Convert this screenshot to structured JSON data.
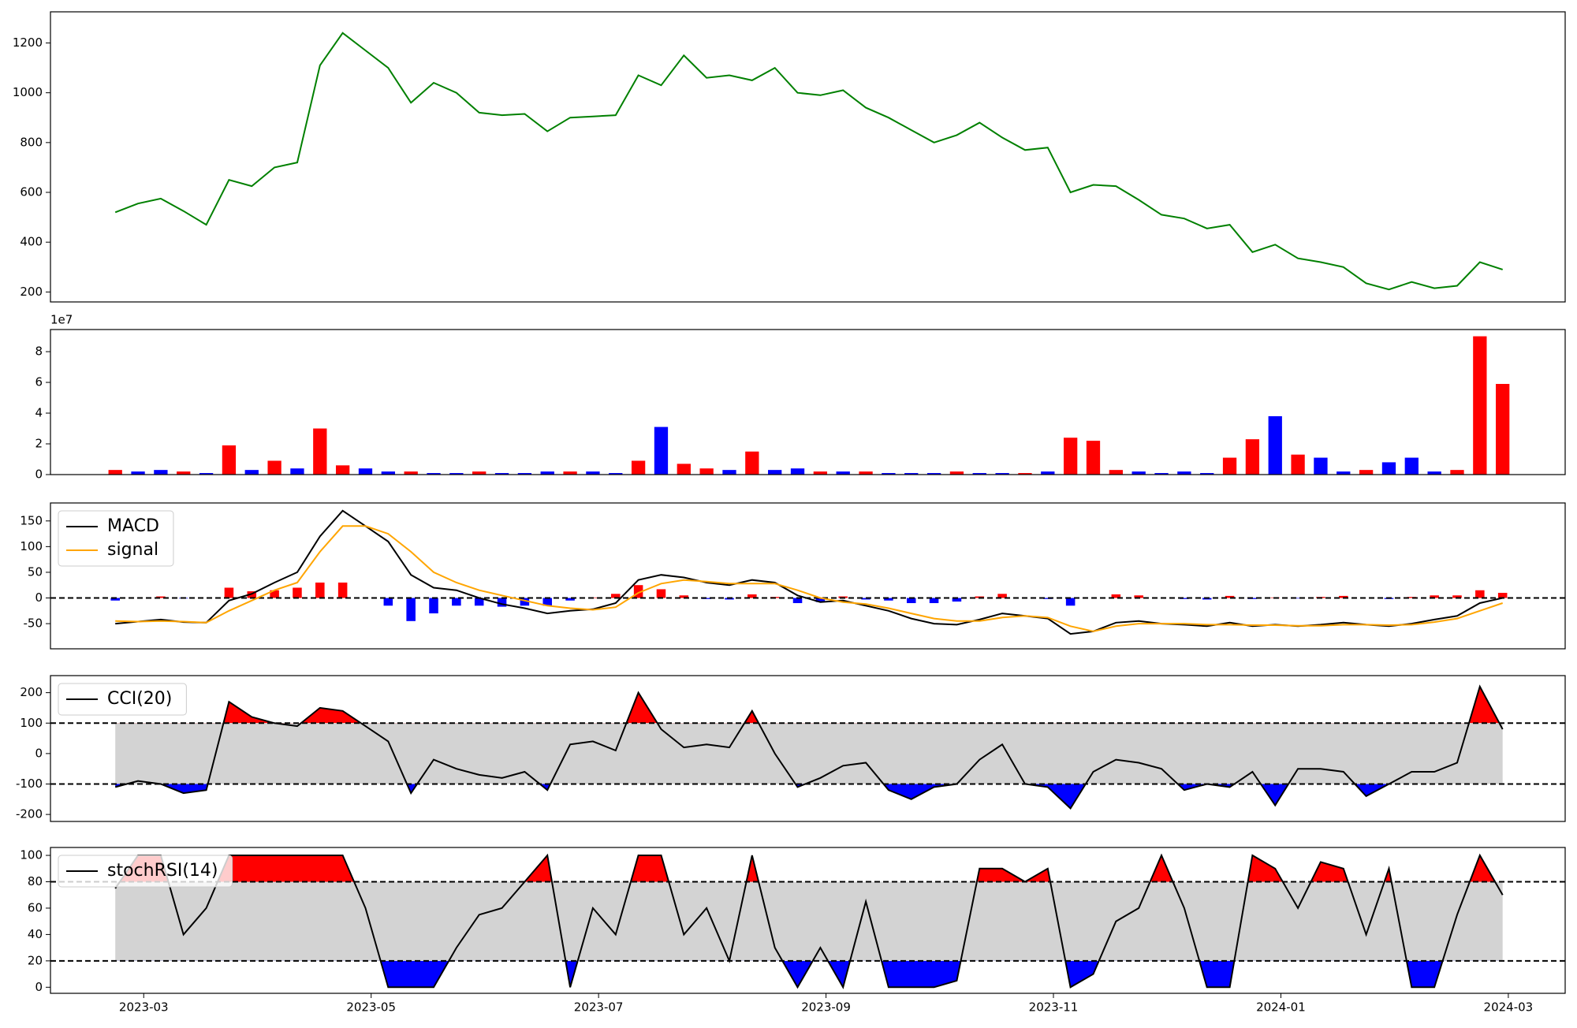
{
  "chart_data": [
    {
      "type": "line",
      "color": "green",
      "x": [
        -0.25,
        -0.05,
        0.15,
        0.35,
        0.55,
        0.75,
        0.95,
        1.15,
        1.35,
        1.55,
        1.75,
        1.95,
        2.15,
        2.35,
        2.55,
        2.75,
        2.95,
        3.15,
        3.35,
        3.55,
        3.75,
        3.95,
        4.15,
        4.35,
        4.55,
        4.75,
        4.95,
        5.15,
        5.35,
        5.55,
        5.75,
        5.95,
        6.15,
        6.35,
        6.55,
        6.75,
        6.95,
        7.15,
        7.35,
        7.55,
        7.75,
        7.95,
        8.15,
        8.35,
        8.55,
        8.75,
        8.95,
        9.15,
        9.35,
        9.55,
        9.75,
        9.95,
        10.15,
        10.35,
        10.55,
        10.75,
        10.95,
        11.15,
        11.35,
        11.55,
        11.75,
        11.95
      ],
      "values": [
        520,
        555,
        575,
        525,
        470,
        650,
        625,
        700,
        720,
        1110,
        1240,
        1170,
        1100,
        960,
        1040,
        1000,
        920,
        910,
        915,
        845,
        900,
        905,
        910,
        1070,
        1030,
        1150,
        1060,
        1070,
        1050,
        1100,
        1000,
        990,
        1010,
        940,
        900,
        850,
        800,
        830,
        880,
        820,
        770,
        780,
        600,
        630,
        625,
        570,
        510,
        495,
        455,
        470,
        360,
        390,
        335,
        320,
        300,
        235,
        210,
        240,
        215,
        225,
        320,
        290
      ],
      "xlim": [
        -0.82,
        12.5
      ],
      "ylim": [
        160,
        1325
      ],
      "yticks": [
        200,
        400,
        600,
        800,
        1000,
        1200
      ]
    },
    {
      "type": "bar",
      "offset_label": "1e7",
      "x": [
        -0.25,
        -0.05,
        0.15,
        0.35,
        0.55,
        0.75,
        0.95,
        1.15,
        1.35,
        1.55,
        1.75,
        1.95,
        2.15,
        2.35,
        2.55,
        2.75,
        2.95,
        3.15,
        3.35,
        3.55,
        3.75,
        3.95,
        4.15,
        4.35,
        4.55,
        4.75,
        4.95,
        5.15,
        5.35,
        5.55,
        5.75,
        5.95,
        6.15,
        6.35,
        6.55,
        6.75,
        6.95,
        7.15,
        7.35,
        7.55,
        7.75,
        7.95,
        8.15,
        8.35,
        8.55,
        8.75,
        8.95,
        9.15,
        9.35,
        9.55,
        9.75,
        9.95,
        10.15,
        10.35,
        10.55,
        10.75,
        10.95,
        11.15,
        11.35,
        11.55,
        11.75,
        11.95
      ],
      "values": [
        0.3,
        0.2,
        0.3,
        0.2,
        0.1,
        1.9,
        0.3,
        0.9,
        0.4,
        3.0,
        0.6,
        0.4,
        0.2,
        0.2,
        0.1,
        0.1,
        0.2,
        0.1,
        0.1,
        0.2,
        0.2,
        0.2,
        0.1,
        0.9,
        3.1,
        0.7,
        0.4,
        0.3,
        1.5,
        0.3,
        0.4,
        0.2,
        0.2,
        0.2,
        0.1,
        0.1,
        0.1,
        0.2,
        0.1,
        0.1,
        0.1,
        0.2,
        2.4,
        2.2,
        0.3,
        0.2,
        0.1,
        0.2,
        0.1,
        1.1,
        2.3,
        3.8,
        1.3,
        1.1,
        0.2,
        0.3,
        0.8,
        1.1,
        0.2,
        0.3,
        9.0,
        5.9
      ],
      "bar_colors": [
        "red",
        "blue",
        "blue",
        "red",
        "blue",
        "red",
        "blue",
        "red",
        "blue",
        "red",
        "red",
        "blue",
        "blue",
        "red",
        "blue",
        "blue",
        "red",
        "blue",
        "blue",
        "blue",
        "red",
        "blue",
        "blue",
        "red",
        "blue",
        "red",
        "red",
        "blue",
        "red",
        "blue",
        "blue",
        "red",
        "blue",
        "red",
        "blue",
        "blue",
        "blue",
        "red",
        "blue",
        "blue",
        "red",
        "blue",
        "red",
        "red",
        "red",
        "blue",
        "blue",
        "blue",
        "blue",
        "red",
        "red",
        "blue",
        "red",
        "blue",
        "blue",
        "red",
        "blue",
        "blue",
        "blue",
        "red",
        "red",
        "red"
      ],
      "xlim": [
        -0.82,
        12.5
      ],
      "ylim": [
        0,
        9.44
      ],
      "yticks": [
        0,
        2,
        4,
        6,
        8
      ]
    },
    {
      "type": "macd",
      "legend": "upper left",
      "x": [
        -0.25,
        -0.05,
        0.15,
        0.35,
        0.55,
        0.75,
        0.95,
        1.15,
        1.35,
        1.55,
        1.75,
        1.95,
        2.15,
        2.35,
        2.55,
        2.75,
        2.95,
        3.15,
        3.35,
        3.55,
        3.75,
        3.95,
        4.15,
        4.35,
        4.55,
        4.75,
        4.95,
        5.15,
        5.35,
        5.55,
        5.75,
        5.95,
        6.15,
        6.35,
        6.55,
        6.75,
        6.95,
        7.15,
        7.35,
        7.55,
        7.75,
        7.95,
        8.15,
        8.35,
        8.55,
        8.75,
        8.95,
        9.15,
        9.35,
        9.55,
        9.75,
        9.95,
        10.15,
        10.35,
        10.55,
        10.75,
        10.95,
        11.15,
        11.35,
        11.55,
        11.75,
        11.95
      ],
      "series": [
        {
          "name": "MACD",
          "color": "black",
          "values": [
            -50,
            -46,
            -42,
            -47,
            -48,
            -5,
            8,
            30,
            50,
            120,
            170,
            140,
            110,
            45,
            20,
            15,
            0,
            -12,
            -20,
            -30,
            -25,
            -22,
            -10,
            35,
            45,
            40,
            30,
            25,
            35,
            30,
            5,
            -8,
            -5,
            -15,
            -25,
            -40,
            -50,
            -52,
            -42,
            -30,
            -35,
            -40,
            -70,
            -65,
            -48,
            -45,
            -50,
            -52,
            -55,
            -48,
            -55,
            -52,
            -55,
            -52,
            -48,
            -52,
            -55,
            -50,
            -42,
            -35,
            -10,
            0
          ]
        },
        {
          "name": "signal",
          "color": "orange",
          "values": [
            -45,
            -46,
            -45,
            -46,
            -48,
            -25,
            -5,
            15,
            30,
            90,
            140,
            140,
            125,
            90,
            50,
            30,
            15,
            5,
            -5,
            -15,
            -20,
            -23,
            -18,
            10,
            28,
            35,
            32,
            28,
            28,
            28,
            15,
            0,
            -8,
            -12,
            -20,
            -30,
            -40,
            -45,
            -45,
            -38,
            -35,
            -38,
            -55,
            -65,
            -55,
            -50,
            -50,
            -50,
            -52,
            -52,
            -53,
            -53,
            -54,
            -54,
            -52,
            -52,
            -53,
            -52,
            -47,
            -40,
            -25,
            -10
          ]
        }
      ],
      "histogram": {
        "positive_color": "red",
        "negative_color": "blue",
        "values": [
          -5,
          0,
          3,
          -1,
          0,
          20,
          13,
          15,
          20,
          30,
          30,
          0,
          -15,
          -45,
          -30,
          -15,
          -15,
          -17,
          -15,
          -15,
          -5,
          1,
          8,
          25,
          17,
          5,
          -2,
          -3,
          7,
          2,
          -10,
          -8,
          3,
          -3,
          -5,
          -10,
          -10,
          -7,
          3,
          8,
          0,
          -2,
          -15,
          0,
          7,
          5,
          0,
          -2,
          -3,
          4,
          -2,
          1,
          -1,
          2,
          4,
          0,
          -2,
          2,
          5,
          5,
          15,
          10
        ]
      },
      "levels": [
        0
      ],
      "xlim": [
        -0.82,
        12.5
      ],
      "ylim": [
        -99,
        185
      ],
      "yticks": [
        -50,
        0,
        50,
        100,
        150
      ]
    },
    {
      "type": "oscillator",
      "legend": "upper left",
      "band_color": "lightgray",
      "upper_color": "red",
      "lower_color": "blue",
      "x": [
        -0.25,
        -0.05,
        0.15,
        0.35,
        0.55,
        0.75,
        0.95,
        1.15,
        1.35,
        1.55,
        1.75,
        1.95,
        2.15,
        2.35,
        2.55,
        2.75,
        2.95,
        3.15,
        3.35,
        3.55,
        3.75,
        3.95,
        4.15,
        4.35,
        4.55,
        4.75,
        4.95,
        5.15,
        5.35,
        5.55,
        5.75,
        5.95,
        6.15,
        6.35,
        6.55,
        6.75,
        6.95,
        7.15,
        7.35,
        7.55,
        7.75,
        7.95,
        8.15,
        8.35,
        8.55,
        8.75,
        8.95,
        9.15,
        9.35,
        9.55,
        9.75,
        9.95,
        10.15,
        10.35,
        10.55,
        10.75,
        10.95,
        11.15,
        11.35,
        11.55,
        11.75,
        11.95
      ],
      "series": [
        {
          "name": "CCI(20)",
          "color": "black",
          "values": [
            -110,
            -90,
            -100,
            -130,
            -120,
            170,
            120,
            100,
            90,
            150,
            140,
            90,
            40,
            -130,
            -20,
            -50,
            -70,
            -80,
            -60,
            -120,
            30,
            40,
            10,
            200,
            80,
            20,
            30,
            20,
            140,
            0,
            -110,
            -80,
            -40,
            -30,
            -120,
            -150,
            -110,
            -100,
            -20,
            30,
            -100,
            -110,
            -180,
            -60,
            -20,
            -30,
            -50,
            -120,
            -100,
            -110,
            -60,
            -170,
            -50,
            -50,
            -60,
            -140,
            -100,
            -60,
            -60,
            -30,
            220,
            80
          ]
        }
      ],
      "levels": [
        -100,
        100
      ],
      "xlim": [
        -0.82,
        12.5
      ],
      "ylim": [
        -223,
        256
      ],
      "yticks": [
        -200,
        -100,
        0,
        100,
        200
      ]
    },
    {
      "type": "oscillator",
      "legend": "upper left",
      "band_color": "lightgray",
      "upper_color": "red",
      "lower_color": "blue",
      "x": [
        -0.25,
        -0.05,
        0.15,
        0.35,
        0.55,
        0.75,
        0.95,
        1.15,
        1.35,
        1.55,
        1.75,
        1.95,
        2.15,
        2.35,
        2.55,
        2.75,
        2.95,
        3.15,
        3.35,
        3.55,
        3.75,
        3.95,
        4.15,
        4.35,
        4.55,
        4.75,
        4.95,
        5.15,
        5.35,
        5.55,
        5.75,
        5.95,
        6.15,
        6.35,
        6.55,
        6.75,
        6.95,
        7.15,
        7.35,
        7.55,
        7.75,
        7.95,
        8.15,
        8.35,
        8.55,
        8.75,
        8.95,
        9.15,
        9.35,
        9.55,
        9.75,
        9.95,
        10.15,
        10.35,
        10.55,
        10.75,
        10.95,
        11.15,
        11.35,
        11.55,
        11.75,
        11.95
      ],
      "series": [
        {
          "name": "stochRSI(14)",
          "color": "black",
          "values": [
            75,
            100,
            100,
            40,
            60,
            100,
            100,
            100,
            100,
            100,
            100,
            60,
            0,
            0,
            0,
            30,
            55,
            60,
            80,
            100,
            0,
            60,
            40,
            100,
            100,
            40,
            60,
            20,
            100,
            30,
            0,
            30,
            0,
            65,
            0,
            0,
            0,
            5,
            90,
            90,
            80,
            90,
            0,
            10,
            50,
            60,
            100,
            60,
            0,
            0,
            100,
            90,
            60,
            95,
            90,
            40,
            90,
            0,
            0,
            55,
            100,
            70
          ]
        }
      ],
      "levels": [
        20,
        80
      ],
      "xlim": [
        -0.82,
        12.5
      ],
      "ylim": [
        -4.6,
        106
      ],
      "yticks": [
        0,
        20,
        40,
        60,
        80,
        100
      ],
      "xticks": [
        {
          "value": 0,
          "label": "2023-03"
        },
        {
          "value": 2,
          "label": "2023-05"
        },
        {
          "value": 4,
          "label": "2023-07"
        },
        {
          "value": 6,
          "label": "2023-09"
        },
        {
          "value": 8,
          "label": "2023-11"
        },
        {
          "value": 10,
          "label": "2024-01"
        },
        {
          "value": 12,
          "label": "2024-03"
        }
      ]
    }
  ]
}
